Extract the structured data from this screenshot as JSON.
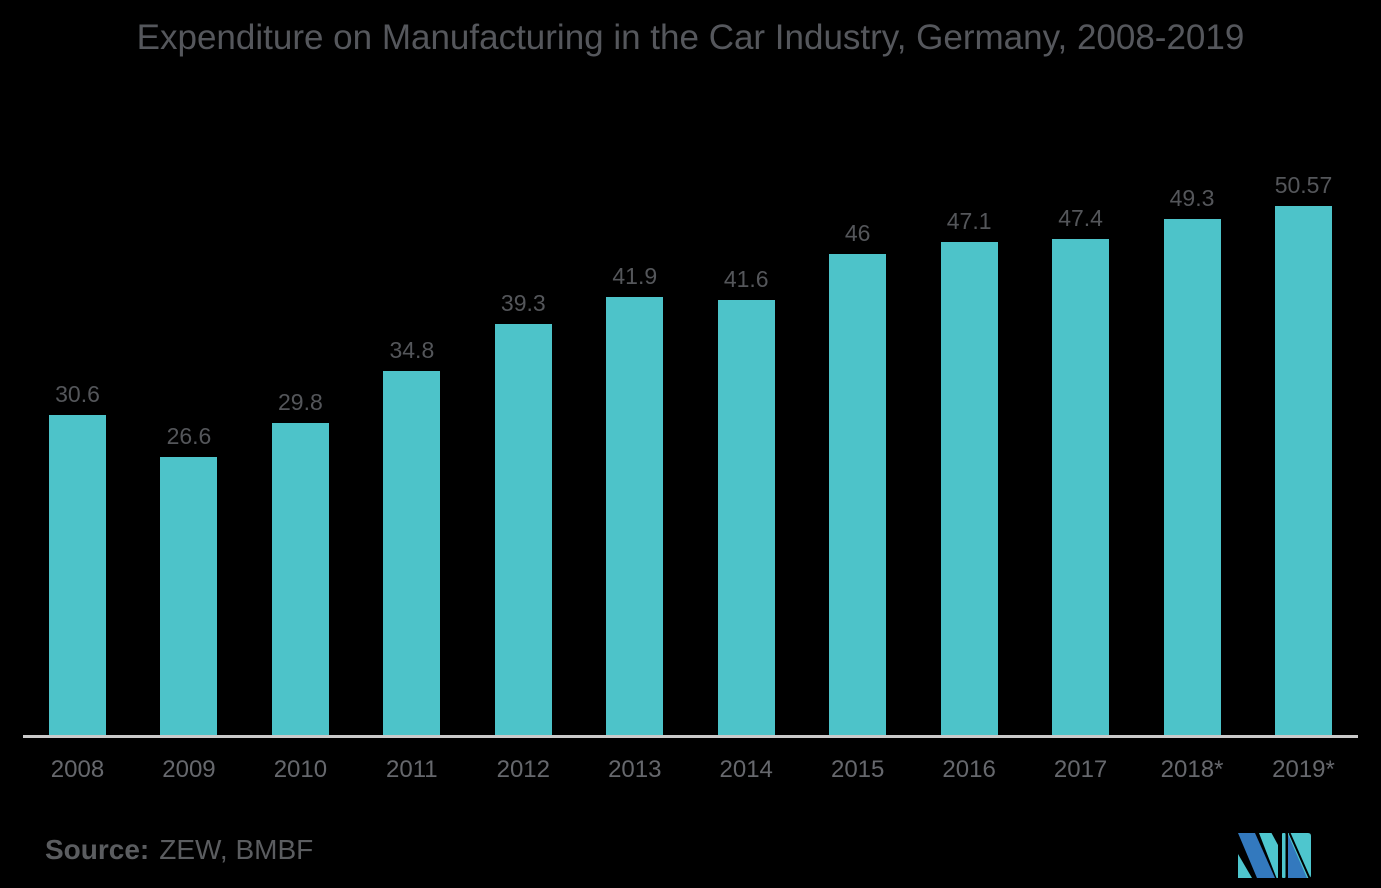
{
  "page": {
    "background": "#000000"
  },
  "chart_data": {
    "type": "bar",
    "title": "Expenditure on Manufacturing in the Car Industry, Germany, 2008-2019",
    "categories": [
      "2008",
      "2009",
      "2010",
      "2011",
      "2012",
      "2013",
      "2014",
      "2015",
      "2016",
      "2017",
      "2018*",
      "2019*"
    ],
    "values": [
      30.6,
      26.6,
      29.8,
      34.8,
      39.3,
      41.9,
      41.6,
      46,
      47.1,
      47.4,
      49.3,
      50.57
    ],
    "value_labels": [
      "30.6",
      "26.6",
      "29.8",
      "34.8",
      "39.3",
      "41.9",
      "41.6",
      "46",
      "47.1",
      "47.4",
      "49.3",
      "50.57"
    ],
    "xlabel": "",
    "ylabel": "",
    "ylim": [
      0,
      55
    ],
    "grid": false,
    "legend": "none",
    "bar_color": "#4DC3C9",
    "value_label_color": "#54565A",
    "category_label_color": "#66686D",
    "title_color": "#55575C",
    "axis_line_color": "#CACACA"
  },
  "footer": {
    "source_label": "Source:",
    "source_value": "ZEW, BMBF",
    "logo": {
      "name": "mordor-intelligence-logo",
      "teal": "#4EC6CE",
      "blue": "#3379BE"
    }
  }
}
